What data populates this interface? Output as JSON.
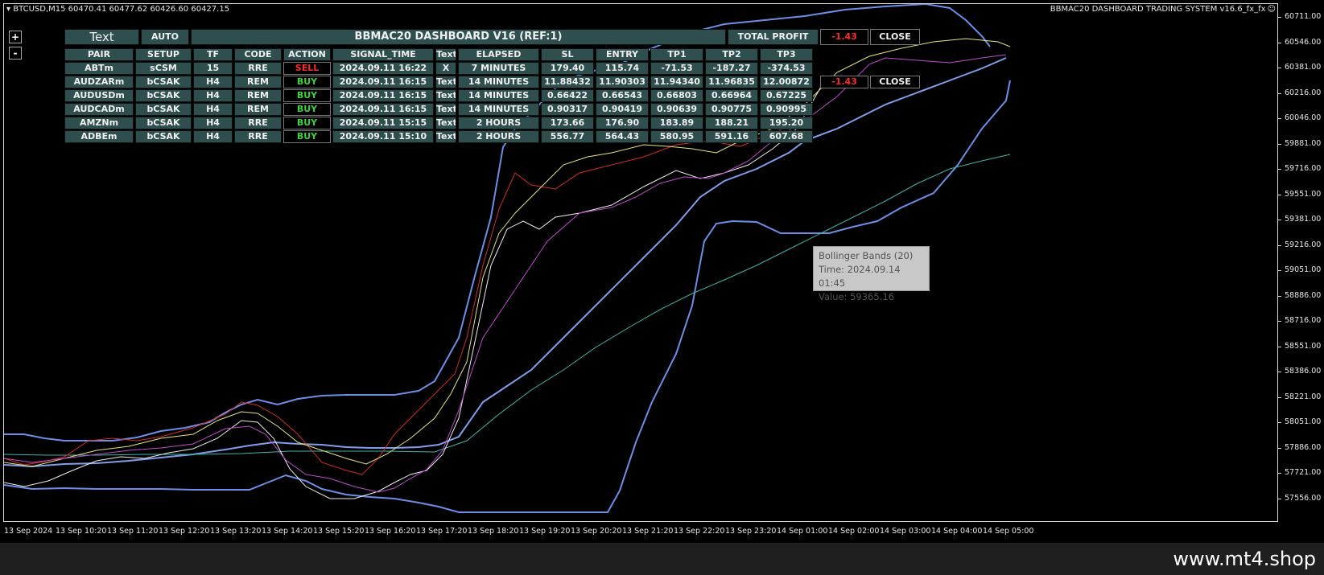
{
  "chart_header": {
    "symbol_info": "BTCUSD,M15  60470.41 60477.62 60426.60 60427.15",
    "system_title": "BBMAC20 DASHBOARD TRADING SYSTEM v16.6_fx_fx",
    "smiley": "☺"
  },
  "zoom": {
    "plus": "+",
    "minus": "-"
  },
  "price_axis": [
    "60711.00",
    "60546.00",
    "60381.00",
    "60216.00",
    "60046.00",
    "59881.00",
    "59716.00",
    "59551.00",
    "59381.00",
    "59216.00",
    "59051.00",
    "58886.00",
    "58716.00",
    "58551.00",
    "58386.00",
    "58221.00",
    "58051.00",
    "57886.00",
    "57721.00",
    "57556.00"
  ],
  "time_axis": [
    "13 Sep 2024",
    "13 Sep 10:20",
    "13 Sep 11:20",
    "13 Sep 12:20",
    "13 Sep 13:20",
    "13 Sep 14:20",
    "13 Sep 15:20",
    "13 Sep 16:20",
    "13 Sep 17:20",
    "13 Sep 18:20",
    "13 Sep 19:20",
    "13 Sep 20:20",
    "13 Sep 21:20",
    "13 Sep 22:20",
    "13 Sep 23:20",
    "14 Sep 01:00",
    "14 Sep 02:00",
    "14 Sep 03:00",
    "14 Sep 04:00",
    "14 Sep 05:00"
  ],
  "dashboard": {
    "text_button": "Text",
    "auto_button": "AUTO",
    "title": "BBMAC20 DASHBOARD V16 (REF:1)",
    "total_profit_label": "TOTAL PROFIT",
    "total_profit_value": "-1.43",
    "close_label": "CLOSE",
    "columns": [
      "PAIR",
      "SETUP",
      "TF",
      "CODE",
      "ACTION",
      "SIGNAL_TIME",
      "Text",
      "ELAPSED",
      "SL",
      "ENTRY",
      "TP1",
      "TP2",
      "TP3"
    ],
    "rows": [
      {
        "pair": "ABTm",
        "setup": "sCSM",
        "tf": "15",
        "code": "RRE",
        "action": "SELL",
        "signal_time": "2024.09.11 16:22",
        "text": "X",
        "elapsed": "7 MINUTES",
        "sl": "179.40",
        "entry": "115.74",
        "tp1": "-71.53",
        "tp2": "-187.27",
        "tp3": "-374.53"
      },
      {
        "pair": "AUDZARm",
        "setup": "bCSAK",
        "tf": "H4",
        "code": "REM",
        "action": "BUY",
        "signal_time": "2024.09.11 16:15",
        "text": "Text",
        "elapsed": "14 MINUTES",
        "sl": "11.88432",
        "entry": "11.90303",
        "tp1": "11.94340",
        "tp2": "11.96835",
        "tp3": "12.00872"
      },
      {
        "pair": "AUDUSDm",
        "setup": "bCSAK",
        "tf": "H4",
        "code": "REM",
        "action": "BUY",
        "signal_time": "2024.09.11 16:15",
        "text": "Text",
        "elapsed": "14 MINUTES",
        "sl": "0.66422",
        "entry": "0.66543",
        "tp1": "0.66803",
        "tp2": "0.66964",
        "tp3": "0.67225"
      },
      {
        "pair": "AUDCADm",
        "setup": "bCSAK",
        "tf": "H4",
        "code": "REM",
        "action": "BUY",
        "signal_time": "2024.09.11 16:15",
        "text": "Text",
        "elapsed": "14 MINUTES",
        "sl": "0.90317",
        "entry": "0.90419",
        "tp1": "0.90639",
        "tp2": "0.90775",
        "tp3": "0.90995"
      },
      {
        "pair": "AMZNm",
        "setup": "bCSAK",
        "tf": "H4",
        "code": "RRE",
        "action": "BUY",
        "signal_time": "2024.09.11 15:15",
        "text": "Text",
        "elapsed": "2 HOURS",
        "sl": "173.66",
        "entry": "176.90",
        "tp1": "183.89",
        "tp2": "188.21",
        "tp3": "195.20"
      },
      {
        "pair": "ADBEm",
        "setup": "bCSAK",
        "tf": "H4",
        "code": "RRE",
        "action": "BUY",
        "signal_time": "2024.09.11 15:10",
        "text": "Text",
        "elapsed": "2 HOURS",
        "sl": "556.77",
        "entry": "564.43",
        "tp1": "580.95",
        "tp2": "591.16",
        "tp3": "607.68"
      }
    ],
    "row_profit": {
      "value": "-1.43",
      "close": "CLOSE"
    }
  },
  "tooltip": {
    "line1": "Bollinger Bands (20)",
    "line2": "Time: 2024.09.14 01:45",
    "line3": "Value: 59365.16"
  },
  "footer": {
    "watermark": "www.mt4.shop"
  },
  "colors": {
    "panel": "#2f4f4f",
    "sell": "#ff2a2a",
    "buy": "#3ad43a",
    "bollinger": "#6b8fe8",
    "ma_teal": "#3fb6a8"
  }
}
